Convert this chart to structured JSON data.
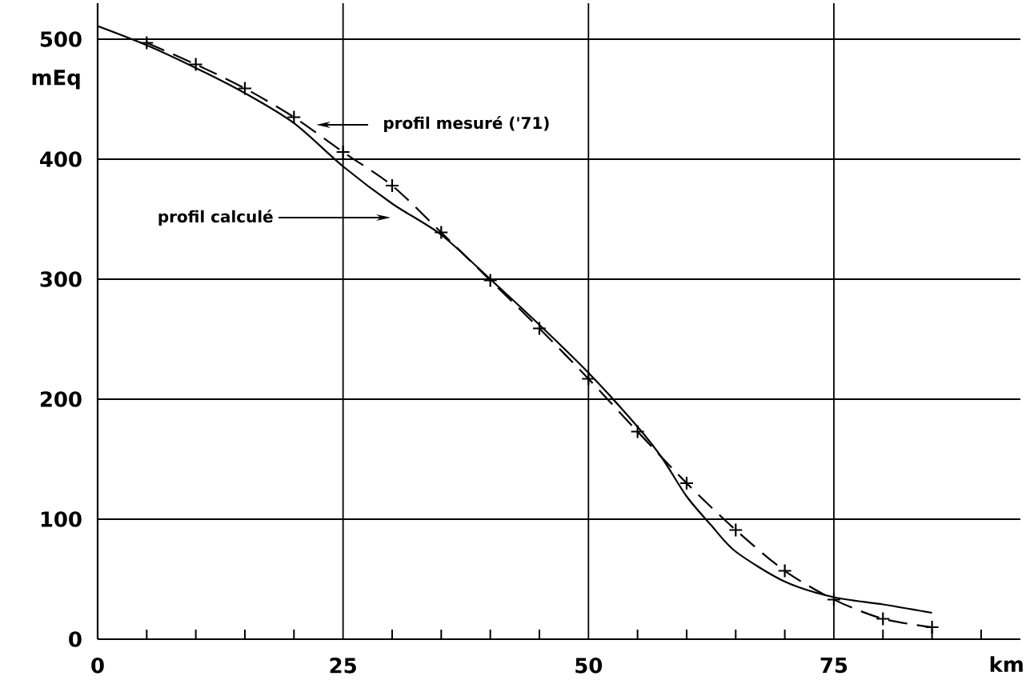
{
  "chart_data": {
    "type": "line",
    "xlabel": "km",
    "ylabel": "mEq",
    "xlim": [
      0,
      94
    ],
    "ylim": [
      0,
      530
    ],
    "xticks": [
      0,
      {
        "value": 5,
        "label": null
      },
      {
        "value": 10,
        "label": null
      },
      {
        "value": 15,
        "label": null
      },
      {
        "value": 20,
        "label": null
      },
      25,
      {
        "value": 30,
        "label": null
      },
      {
        "value": 35,
        "label": null
      },
      {
        "value": 40,
        "label": null
      },
      {
        "value": 45,
        "label": null
      },
      50,
      {
        "value": 55,
        "label": null
      },
      {
        "value": 60,
        "label": null
      },
      {
        "value": 65,
        "label": null
      },
      {
        "value": 70,
        "label": null
      },
      75,
      {
        "value": 80,
        "label": null
      },
      {
        "value": 85,
        "label": null
      },
      {
        "value": 90,
        "label": null
      }
    ],
    "yticks": [
      0,
      100,
      200,
      300,
      400,
      500
    ],
    "grid": true,
    "series": [
      {
        "color": "#000000",
        "line_style": "dashed",
        "marker": "cross",
        "x": [
          5,
          10,
          15,
          20,
          25,
          30,
          35,
          40,
          45,
          50,
          55,
          60,
          65,
          70,
          75,
          80,
          85
        ],
        "values": [
          497,
          479,
          459,
          435,
          406,
          378,
          339,
          299,
          259,
          217,
          173,
          130,
          91,
          57,
          33,
          17,
          10
        ]
      },
      {
        "color": "#000000",
        "line_style": "solid",
        "marker": "none",
        "x": [
          0,
          5,
          10,
          15,
          20,
          25,
          30,
          35,
          40,
          45,
          50,
          55,
          57.5,
          60,
          62.5,
          65,
          70,
          75,
          80,
          85
        ],
        "values": [
          511,
          495,
          476,
          455,
          430,
          394,
          363,
          337,
          300,
          262,
          222,
          177,
          151,
          119,
          95,
          73,
          48,
          35,
          29,
          22
        ]
      }
    ],
    "annotations": [
      "profil mesuré ('71)",
      "profil calculé"
    ]
  }
}
